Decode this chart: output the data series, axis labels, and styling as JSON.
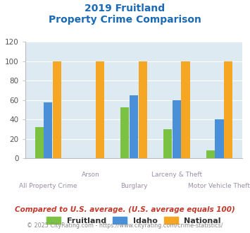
{
  "title_line1": "2019 Fruitland",
  "title_line2": "Property Crime Comparison",
  "categories": [
    "All Property Crime",
    "Arson",
    "Burglary",
    "Larceny & Theft",
    "Motor Vehicle Theft"
  ],
  "fruitland": [
    32,
    0,
    53,
    30,
    8
  ],
  "idaho": [
    58,
    0,
    65,
    60,
    40
  ],
  "national": [
    100,
    100,
    100,
    100,
    100
  ],
  "fruitland_color": "#7bc142",
  "idaho_color": "#4a90d9",
  "national_color": "#f5a623",
  "ylim": [
    0,
    120
  ],
  "yticks": [
    0,
    20,
    40,
    60,
    80,
    100,
    120
  ],
  "bg_color": "#ddeaf2",
  "title_color": "#1a6ab5",
  "xlabel_color": "#9b8ea8",
  "legend_text_color": "#333333",
  "legend_label1": "Fruitland",
  "legend_label2": "Idaho",
  "legend_label3": "National",
  "footnote1": "Compared to U.S. average. (U.S. average equals 100)",
  "footnote2": "© 2025 CityRating.com - https://www.cityrating.com/crime-statistics/",
  "footnote1_color": "#c0392b",
  "footnote2_color": "#888888",
  "bar_width": 0.2
}
